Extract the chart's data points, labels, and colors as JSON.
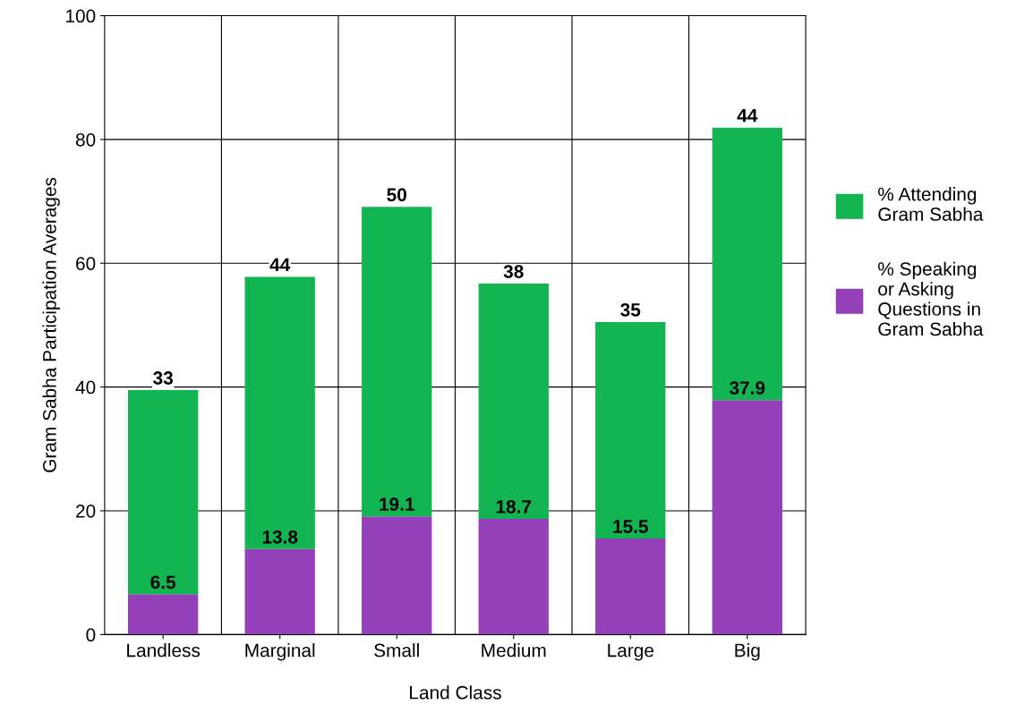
{
  "chart_data": {
    "type": "bar",
    "stacked": true,
    "xlabel": "Land Class",
    "ylabel": "Gram Sabha Participation Averages",
    "categories": [
      "Landless",
      "Marginal",
      "Small",
      "Medium",
      "Large",
      "Big"
    ],
    "series": [
      {
        "name": "% Speaking or Asking Questions in Gram Sabha",
        "color": "#9440b8",
        "values": [
          6.5,
          13.8,
          19.1,
          18.7,
          15.5,
          37.9
        ]
      },
      {
        "name": "% Attending Gram Sabha",
        "color": "#13b552",
        "values": [
          33,
          44,
          50,
          38,
          35,
          44
        ]
      }
    ],
    "ylim": [
      0,
      100
    ],
    "yticks": [
      0,
      20,
      40,
      60,
      80,
      100
    ],
    "grid": true,
    "legend": "right",
    "data_labels": true
  }
}
